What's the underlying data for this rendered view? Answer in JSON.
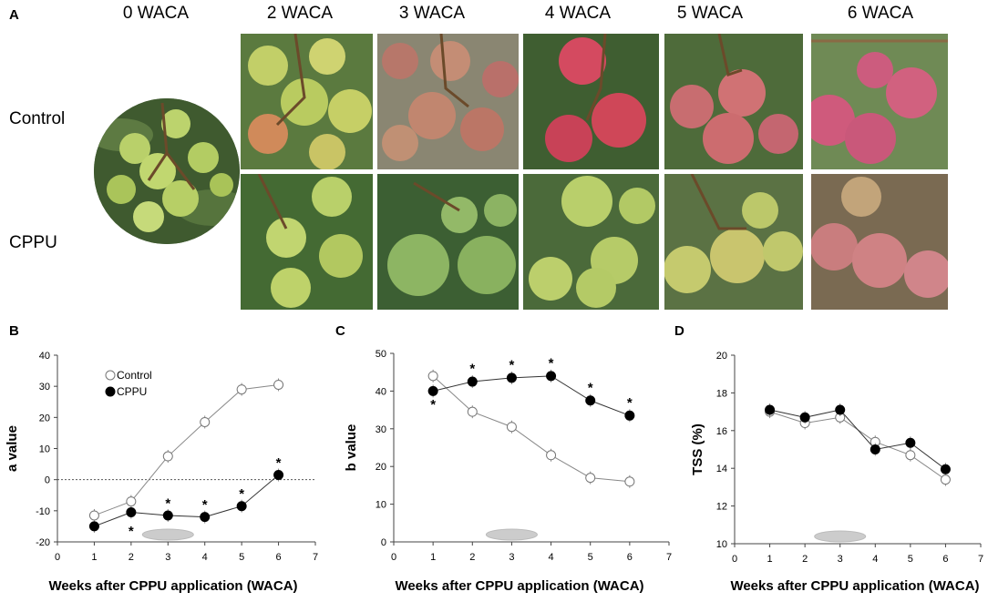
{
  "panel_a": {
    "letter": "A",
    "columns": [
      "0 WACA",
      "2 WACA",
      "3 WACA",
      "4 WACA",
      "5 WACA",
      "6 WACA"
    ],
    "rows": [
      "Control",
      "CPPU"
    ]
  },
  "colors": {
    "green_fruit": "#a9c653",
    "red_fruit": "#c94a5e",
    "pink_fruit": "#d16f8a",
    "leaf": "#4d6a36",
    "marker_gray": "#cccccc"
  },
  "chart_data": [
    {
      "panel": "B",
      "type": "line",
      "ylabel": "a value",
      "xlabel": "Weeks after CPPU application (WACA)",
      "xlim": [
        0,
        7
      ],
      "ylim": [
        -20,
        40
      ],
      "xticks": [
        "0",
        "1",
        "2",
        "3",
        "4",
        "5",
        "6",
        "7"
      ],
      "yticks": [
        "-20",
        "-10",
        "0",
        "10",
        "20",
        "30",
        "40"
      ],
      "reference_line": 0,
      "legend": [
        "Control",
        "CPPU"
      ],
      "legend_position": "top-left",
      "x": [
        1,
        2,
        3,
        4,
        5,
        6
      ],
      "series": [
        {
          "name": "Control",
          "marker": "open",
          "values": [
            -11.5,
            -7,
            7.5,
            18.5,
            29,
            30.5
          ]
        },
        {
          "name": "CPPU",
          "marker": "filled",
          "values": [
            -15,
            -10.5,
            -11.5,
            -12,
            -8.5,
            1.5
          ]
        }
      ],
      "significance": [
        {
          "x": 2,
          "y": -16.5,
          "label": "*"
        },
        {
          "x": 3,
          "y": -7.5,
          "label": "*"
        },
        {
          "x": 4,
          "y": -8,
          "label": "*"
        },
        {
          "x": 5,
          "y": -4.5,
          "label": "*"
        },
        {
          "x": 6,
          "y": 5.5,
          "label": "*"
        }
      ],
      "ellipse_x": 3
    },
    {
      "panel": "C",
      "type": "line",
      "ylabel": "b value",
      "xlabel": "Weeks after CPPU application (WACA)",
      "xlim": [
        0,
        7
      ],
      "ylim": [
        0,
        50
      ],
      "xticks": [
        "0",
        "1",
        "2",
        "3",
        "4",
        "5",
        "6",
        "7"
      ],
      "yticks": [
        "0",
        "10",
        "20",
        "30",
        "40",
        "50"
      ],
      "x": [
        1,
        2,
        3,
        4,
        5,
        6
      ],
      "series": [
        {
          "name": "Control",
          "marker": "open",
          "values": [
            44,
            34.5,
            30.5,
            23,
            17,
            16
          ]
        },
        {
          "name": "CPPU",
          "marker": "filled",
          "values": [
            40,
            42.5,
            43.5,
            44,
            37.5,
            33.5
          ]
        }
      ],
      "significance": [
        {
          "x": 1,
          "y": 36.5,
          "label": "*"
        },
        {
          "x": 2,
          "y": 46,
          "label": "*"
        },
        {
          "x": 3,
          "y": 47,
          "label": "*"
        },
        {
          "x": 4,
          "y": 47.5,
          "label": "*"
        },
        {
          "x": 5,
          "y": 41,
          "label": "*"
        },
        {
          "x": 6,
          "y": 37,
          "label": "*"
        }
      ],
      "ellipse_x": 3
    },
    {
      "panel": "D",
      "type": "line",
      "ylabel": "TSS (%)",
      "xlabel": "Weeks after CPPU application (WACA)",
      "xlim": [
        0,
        7
      ],
      "ylim": [
        10,
        20
      ],
      "xticks": [
        "0",
        "1",
        "2",
        "3",
        "4",
        "5",
        "6",
        "7"
      ],
      "yticks": [
        "10",
        "12",
        "14",
        "16",
        "18",
        "20"
      ],
      "x": [
        1,
        2,
        3,
        4,
        5,
        6
      ],
      "series": [
        {
          "name": "Control",
          "marker": "open",
          "values": [
            17,
            16.4,
            16.7,
            15.4,
            14.7,
            13.4
          ]
        },
        {
          "name": "CPPU",
          "marker": "filled",
          "values": [
            17.1,
            16.7,
            17.1,
            15,
            15.35,
            13.95
          ]
        }
      ],
      "significance": [],
      "ellipse_x": 3
    }
  ]
}
